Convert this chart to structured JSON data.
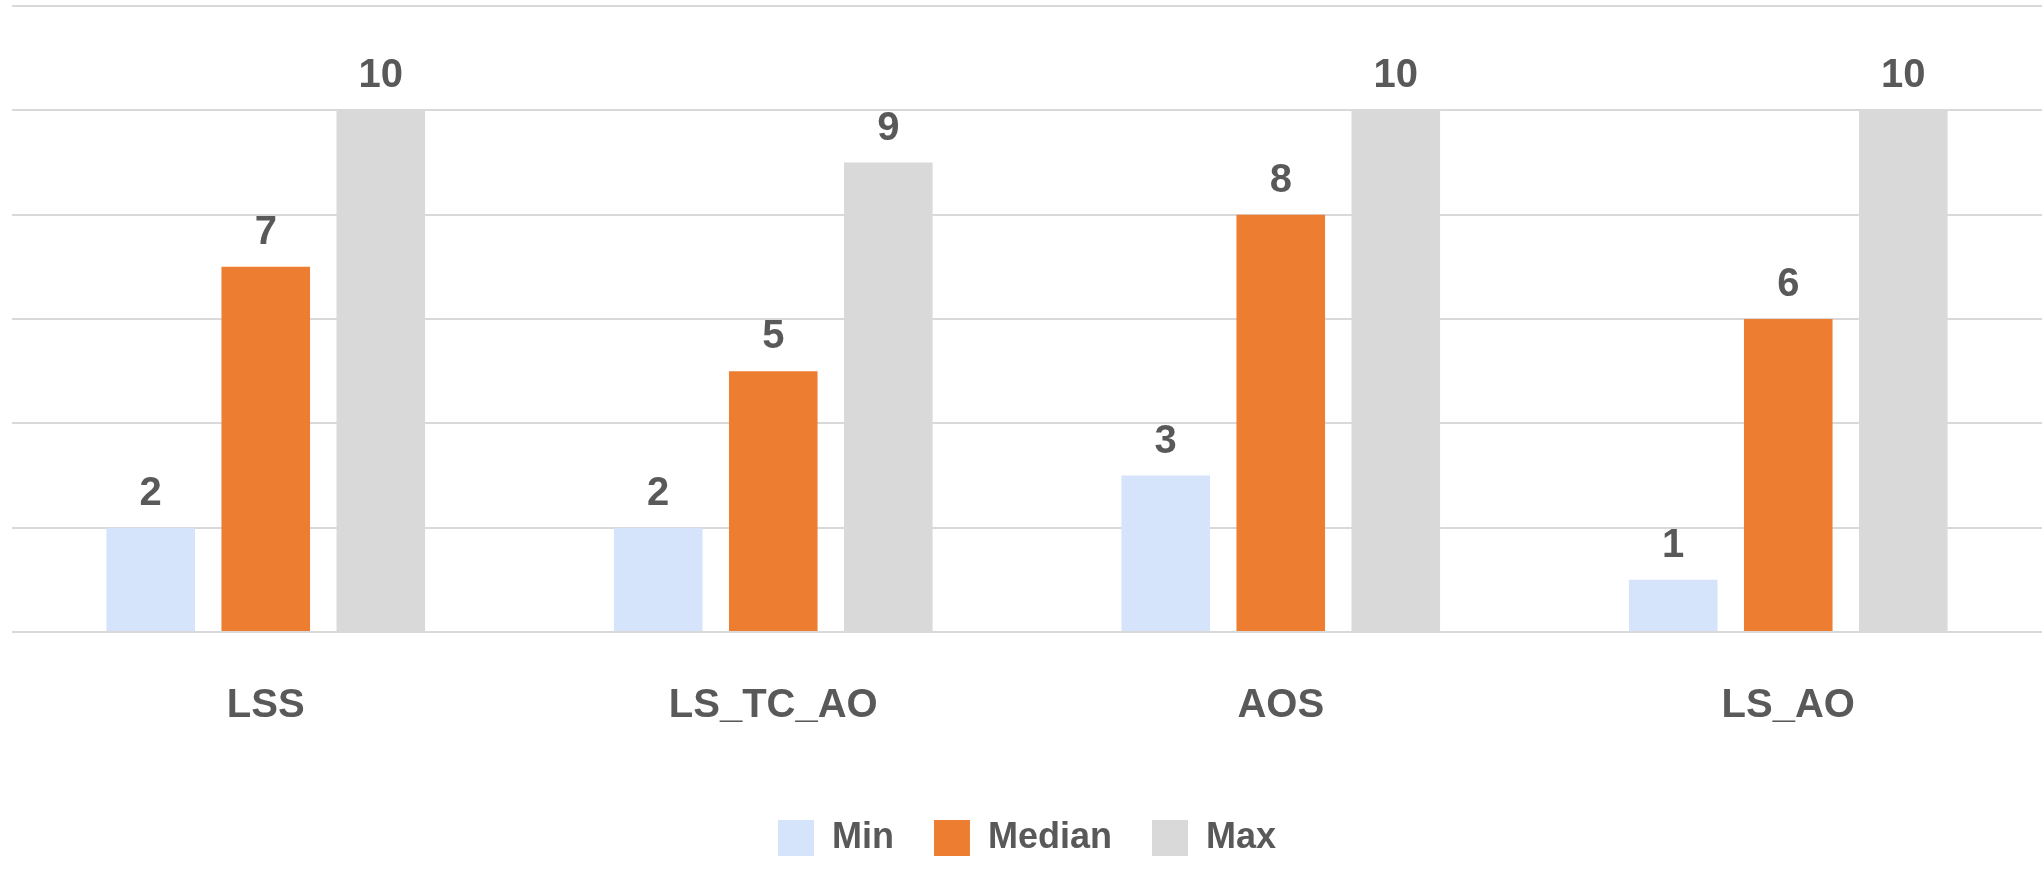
{
  "chart_data": {
    "type": "bar",
    "categories": [
      "LSS",
      "LS_TC_AO",
      "AOS",
      "LS_AO"
    ],
    "series": [
      {
        "name": "Min",
        "color": "#d6e4fb",
        "values": [
          2,
          2,
          3,
          1
        ]
      },
      {
        "name": "Median",
        "color": "#ed7d31",
        "values": [
          7,
          5,
          8,
          6
        ]
      },
      {
        "name": "Max",
        "color": "#d9d9d9",
        "values": [
          10,
          9,
          10,
          10
        ]
      }
    ],
    "ylim": [
      0,
      12
    ],
    "yticks": [
      {
        "value": 0,
        "label": null
      },
      {
        "value": 2,
        "label": null
      },
      {
        "value": 4,
        "label": null
      },
      {
        "value": 6,
        "label": null
      },
      {
        "value": 8,
        "label": null
      },
      {
        "value": 10,
        "label": null
      },
      {
        "value": 12,
        "label": null
      }
    ],
    "tick_labels": "x",
    "grid": "y",
    "legend": "bottom",
    "data_labels": true
  }
}
